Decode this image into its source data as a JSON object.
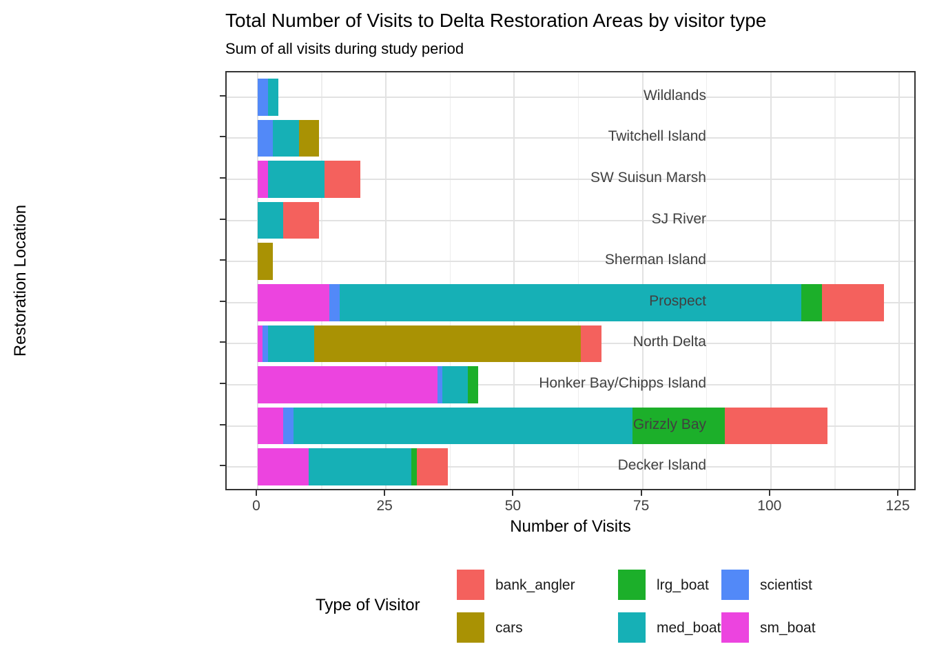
{
  "chart_data": {
    "type": "bar",
    "orientation": "horizontal",
    "stacked": true,
    "title": "Total Number of Visits to Delta Restoration Areas by visitor type",
    "subtitle": "Sum of all visits during study period",
    "xlabel": "Number of Visits",
    "ylabel": "Restoration Location",
    "xlim": [
      0,
      125
    ],
    "xticks": [
      "0",
      "25",
      "50",
      "75",
      "100",
      "125"
    ],
    "xtick_values": [
      0,
      25,
      50,
      75,
      100,
      125
    ],
    "grid": "major and minor vertical gridlines, major horizontal gridlines, light gray on white, dark panel border",
    "legend_position": "bottom",
    "categories": [
      "Wildlands",
      "Twitchell Island",
      "SW Suisun Marsh",
      "SJ River",
      "Sherman Island",
      "Prospect",
      "North Delta",
      "Honker Bay/Chipps Island",
      "Grizzly Bay",
      "Decker Island"
    ],
    "stack_order_left_to_right": [
      "sm_boat",
      "scientist",
      "med_boat",
      "lrg_boat",
      "cars",
      "bank_angler"
    ],
    "series": [
      {
        "name": "bank_angler",
        "color": "#F4615D",
        "values": [
          0,
          0,
          7,
          7,
          0,
          12,
          4,
          0,
          20,
          6
        ]
      },
      {
        "name": "cars",
        "color": "#A99204",
        "values": [
          0,
          4,
          0,
          0,
          3,
          0,
          52,
          0,
          0,
          0
        ]
      },
      {
        "name": "lrg_boat",
        "color": "#1CAF2A",
        "values": [
          0,
          0,
          0,
          0,
          0,
          4,
          0,
          2,
          18,
          1
        ]
      },
      {
        "name": "med_boat",
        "color": "#16B0B6",
        "values": [
          2,
          5,
          11,
          5,
          0,
          90,
          9,
          5,
          66,
          20
        ]
      },
      {
        "name": "scientist",
        "color": "#5289F8",
        "values": [
          2,
          3,
          0,
          0,
          0,
          2,
          1,
          1,
          2,
          0
        ]
      },
      {
        "name": "sm_boat",
        "color": "#EC44DF",
        "values": [
          0,
          0,
          2,
          0,
          0,
          14,
          1,
          35,
          5,
          10
        ]
      }
    ],
    "totals": [
      4,
      12,
      20,
      12,
      3,
      122,
      67,
      43,
      111,
      37
    ]
  },
  "legend": {
    "title": "Type of Visitor",
    "items": [
      {
        "label": "bank_angler",
        "color": "#F4615D"
      },
      {
        "label": "cars",
        "color": "#A99204"
      },
      {
        "label": "lrg_boat",
        "color": "#1CAF2A"
      },
      {
        "label": "med_boat",
        "color": "#16B0B6"
      },
      {
        "label": "scientist",
        "color": "#5289F8"
      },
      {
        "label": "sm_boat",
        "color": "#EC44DF"
      }
    ]
  }
}
